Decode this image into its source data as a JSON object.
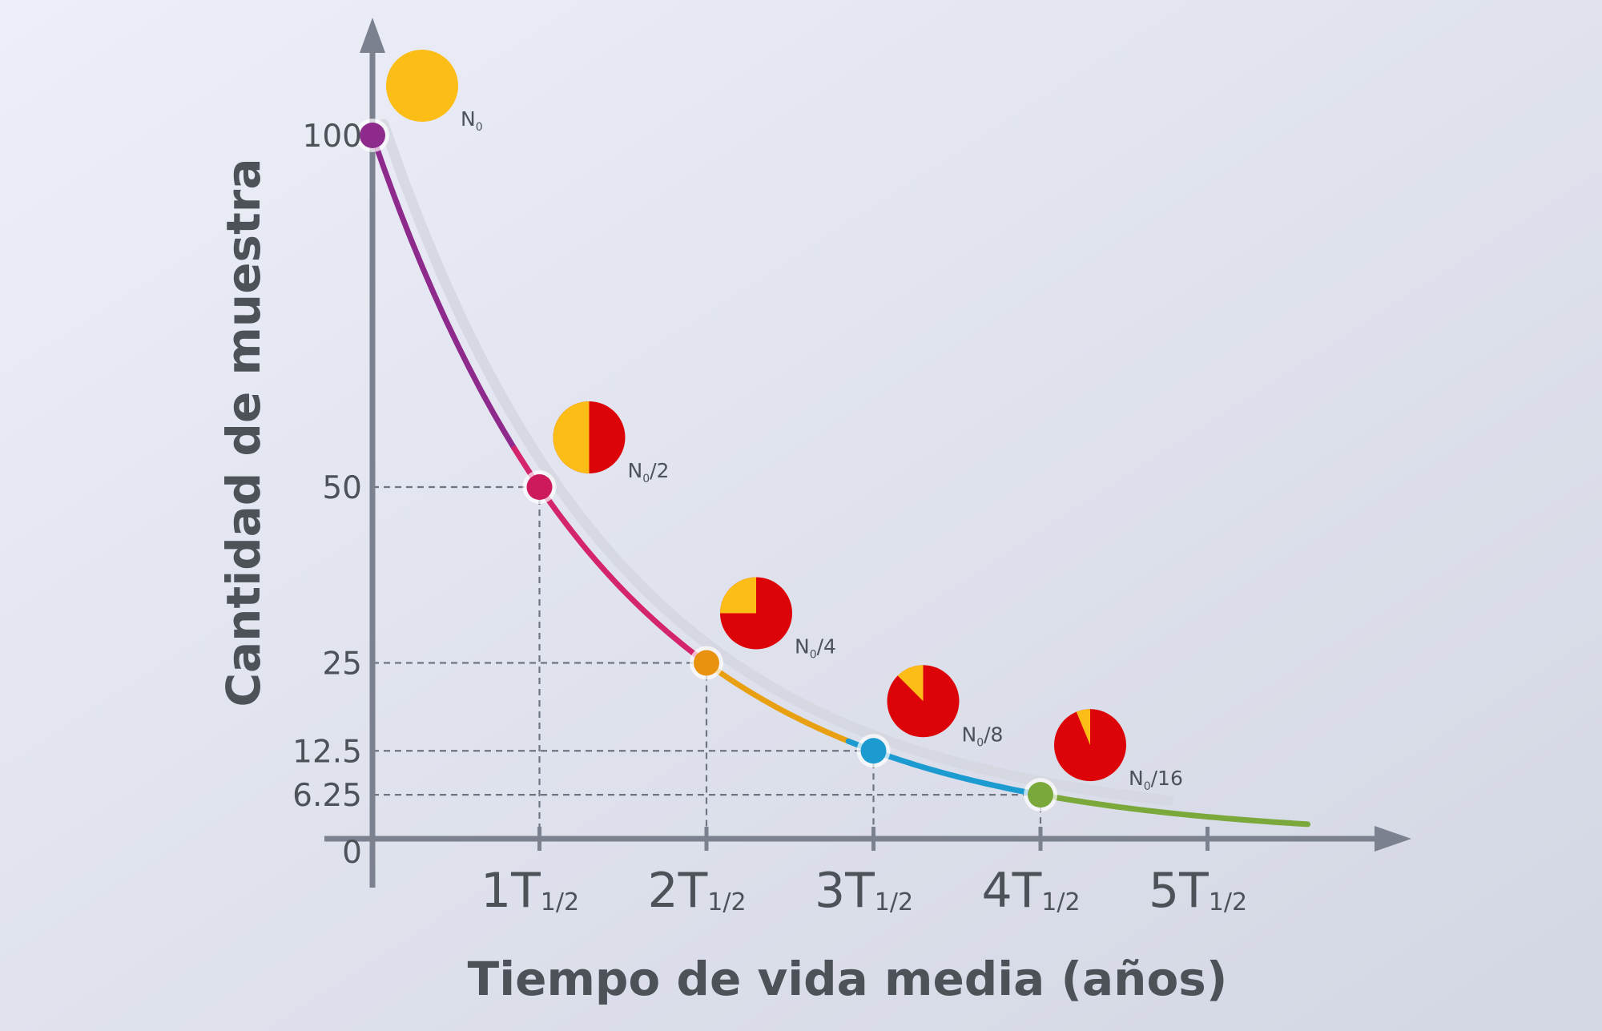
{
  "colors": {
    "background_start": "#eceef8",
    "background_end": "#d3d7e3",
    "axis": "#7b818f",
    "guide": "#6e7482",
    "remaining": "#fbbd16",
    "decayed": "#dd0409",
    "shadow_curve": "#d4d6df"
  },
  "chart_data": {
    "type": "line",
    "xlabel": "Tiempo de vida media (años)",
    "ylabel": "Cantidad de muestra",
    "y_axis": {
      "ticks": [
        {
          "value": 100,
          "label": "100"
        },
        {
          "value": 50,
          "label": "50"
        },
        {
          "value": 25,
          "label": "25"
        },
        {
          "value": 12.5,
          "label": "12.5"
        },
        {
          "value": 6.25,
          "label": "6.25"
        },
        {
          "value": 0,
          "label": "0"
        }
      ]
    },
    "x_axis": {
      "ticks": [
        {
          "value": 1,
          "main": "1T",
          "sub": "1/2"
        },
        {
          "value": 2,
          "main": "2T",
          "sub": "1/2"
        },
        {
          "value": 3,
          "main": "3T",
          "sub": "1/2"
        },
        {
          "value": 4,
          "main": "4T",
          "sub": "1/2"
        },
        {
          "value": 5,
          "main": "5T",
          "sub": "1/2"
        }
      ]
    },
    "points": [
      {
        "x": 0,
        "y": 100,
        "color": "#8f2a8d"
      },
      {
        "x": 1,
        "y": 50,
        "color": "#cc1a5c"
      },
      {
        "x": 2,
        "y": 25,
        "color": "#e8920f"
      },
      {
        "x": 3,
        "y": 12.5,
        "color": "#1c9bd0"
      },
      {
        "x": 4,
        "y": 6.25,
        "color": "#7aa83a"
      }
    ],
    "curve_colors": [
      "#8f2a8d",
      "#d4246a",
      "#e8a011",
      "#1c9bd0",
      "#7aa83a",
      "#6a9a2b"
    ],
    "pies": [
      {
        "x": 0,
        "remaining_fraction": 1,
        "label_main": "N",
        "label_sub": "0",
        "label_tail": ""
      },
      {
        "x": 1,
        "remaining_fraction": 0.5,
        "label_main": "N",
        "label_sub": "0",
        "label_tail": "/2"
      },
      {
        "x": 2,
        "remaining_fraction": 0.25,
        "label_main": "N",
        "label_sub": "0",
        "label_tail": "/4"
      },
      {
        "x": 3,
        "remaining_fraction": 0.125,
        "label_main": "N",
        "label_sub": "0",
        "label_tail": "/8"
      },
      {
        "x": 4,
        "remaining_fraction": 0.0625,
        "label_main": "N",
        "label_sub": "0",
        "label_tail": "/16"
      }
    ],
    "guides_to": [
      1,
      2,
      3,
      4
    ]
  }
}
